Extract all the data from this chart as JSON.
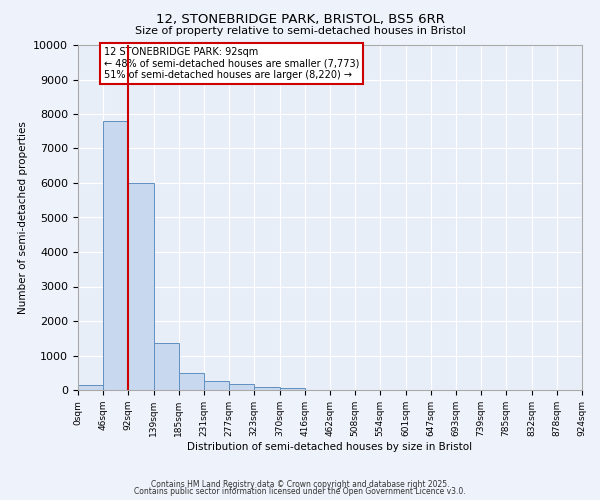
{
  "title": "12, STONEBRIDGE PARK, BRISTOL, BS5 6RR",
  "subtitle": "Size of property relative to semi-detached houses in Bristol",
  "xlabel": "Distribution of semi-detached houses by size in Bristol",
  "ylabel": "Number of semi-detached properties",
  "bin_edges": [
    0,
    46,
    92,
    139,
    185,
    231,
    277,
    323,
    370,
    416,
    462,
    508,
    554,
    601,
    647,
    693,
    739,
    785,
    832,
    878,
    924
  ],
  "bar_heights": [
    150,
    7800,
    6000,
    1350,
    480,
    260,
    180,
    80,
    50,
    0,
    0,
    0,
    0,
    0,
    0,
    0,
    0,
    0,
    0,
    0
  ],
  "bar_color": "#c8d8ee",
  "bar_edge_color": "#6090c0",
  "property_size": 92,
  "property_line_color": "#cc0000",
  "annotation_title": "12 STONEBRIDGE PARK: 92sqm",
  "annotation_line1": "← 48% of semi-detached houses are smaller (7,773)",
  "annotation_line2": "51% of semi-detached houses are larger (8,220) →",
  "annotation_box_color": "#cc0000",
  "ylim": [
    0,
    10000
  ],
  "yticks": [
    0,
    1000,
    2000,
    3000,
    4000,
    5000,
    6000,
    7000,
    8000,
    9000,
    10000
  ],
  "footer1": "Contains HM Land Registry data © Crown copyright and database right 2025.",
  "footer2": "Contains public sector information licensed under the Open Government Licence v3.0.",
  "bg_color": "#eef2fa",
  "plot_bg_color": "#e8eef8",
  "grid_color": "#ffffff"
}
